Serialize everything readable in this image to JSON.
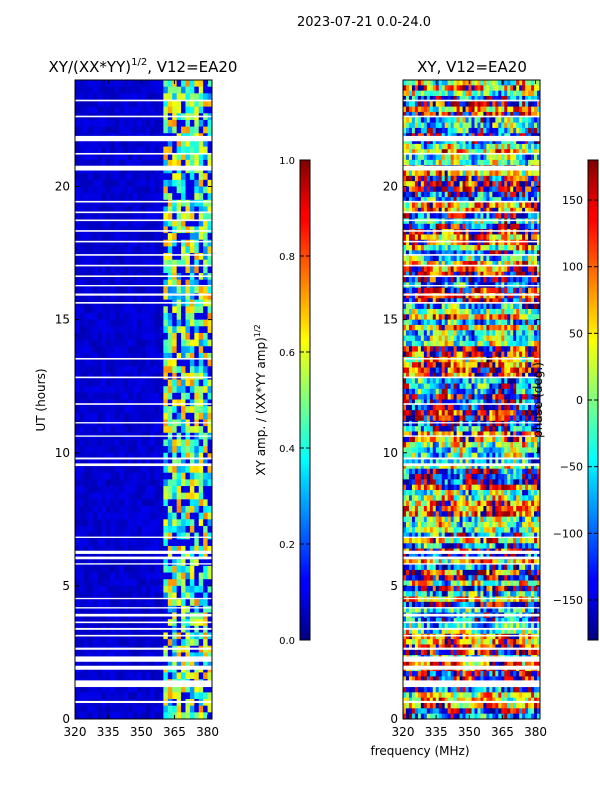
{
  "suptitle": "2023-07-21 0.0-24.0",
  "common_xlabel": "frequency (MHz)",
  "colormap": "jet",
  "chart_data": [
    {
      "type": "heatmap",
      "title": "XY/(XX*YY)^{1/2}, V12=EA20",
      "title_main": "XY/(XX*YY)",
      "title_sup": "1/2",
      "title_tail": ", V12=EA20",
      "xlabel": "",
      "ylabel": "UT (hours)",
      "xlim": [
        320,
        382
      ],
      "ylim": [
        0,
        24
      ],
      "xticks": [
        320,
        335,
        350,
        365,
        380
      ],
      "xtick_labels": [
        "320",
        "335",
        "350",
        "365",
        "380"
      ],
      "yticks": [
        0,
        5,
        10,
        15,
        20
      ],
      "ytick_labels": [
        "0",
        "5",
        "10",
        "15",
        "20"
      ],
      "description_values": {
        "background_level": 0.05,
        "rfi_band_mhz": [
          360,
          382
        ],
        "rfi_level": 0.5
      },
      "colorbar": {
        "label": "XY amp. / (XX*YY amp)^{1/2}",
        "label_main": "XY amp. / (XX*YY amp)",
        "label_sup": "1/2",
        "range": [
          0.0,
          1.0
        ],
        "ticks": [
          0.0,
          0.2,
          0.4,
          0.6,
          0.8,
          1.0
        ],
        "tick_labels": [
          "0.0",
          "0.2",
          "0.4",
          "0.6",
          "0.8",
          "1.0"
        ]
      }
    },
    {
      "type": "heatmap",
      "title": "XY, V12=EA20",
      "xlabel": "frequency (MHz)",
      "ylabel": "",
      "xlim": [
        320,
        382
      ],
      "ylim": [
        0,
        24
      ],
      "xticks": [
        320,
        335,
        350,
        365,
        380
      ],
      "xtick_labels": [
        "320",
        "335",
        "350",
        "365",
        "380"
      ],
      "yticks": [
        0,
        5,
        10,
        15,
        20
      ],
      "ytick_labels": [
        "0",
        "5",
        "10",
        "15",
        "20"
      ],
      "colorbar": {
        "label": "phase (deg.)",
        "range": [
          -180,
          180
        ],
        "ticks": [
          -150,
          -100,
          -50,
          0,
          50,
          100,
          150
        ],
        "tick_labels": [
          "−150",
          "−100",
          "−50",
          "0",
          "50",
          "100",
          "150"
        ]
      }
    }
  ],
  "flagged_time_ranges_hours": [
    [
      0.6,
      0.68
    ],
    [
      1.2,
      1.45
    ],
    [
      1.85,
      2.0
    ],
    [
      2.15,
      2.35
    ],
    [
      2.6,
      2.68
    ],
    [
      3.1,
      3.16
    ],
    [
      3.35,
      3.42
    ],
    [
      3.6,
      3.66
    ],
    [
      3.85,
      3.95
    ],
    [
      4.15,
      4.2
    ],
    [
      4.5,
      4.55
    ],
    [
      5.8,
      5.85
    ],
    [
      6.0,
      6.1
    ],
    [
      6.2,
      6.32
    ],
    [
      6.8,
      6.85
    ],
    [
      9.5,
      9.6
    ],
    [
      9.75,
      9.82
    ],
    [
      10.6,
      10.65
    ],
    [
      11.1,
      11.15
    ],
    [
      11.8,
      11.86
    ],
    [
      12.8,
      12.86
    ],
    [
      13.5,
      13.56
    ],
    [
      15.6,
      15.66
    ],
    [
      15.9,
      15.98
    ],
    [
      16.25,
      16.3
    ],
    [
      16.6,
      16.66
    ],
    [
      17.0,
      17.06
    ],
    [
      17.4,
      17.46
    ],
    [
      17.9,
      17.96
    ],
    [
      18.3,
      18.36
    ],
    [
      18.7,
      18.76
    ],
    [
      19.0,
      19.06
    ],
    [
      19.4,
      19.46
    ],
    [
      20.6,
      20.78
    ],
    [
      21.2,
      21.26
    ],
    [
      21.7,
      21.9
    ],
    [
      22.6,
      22.66
    ],
    [
      23.2,
      23.26
    ]
  ]
}
